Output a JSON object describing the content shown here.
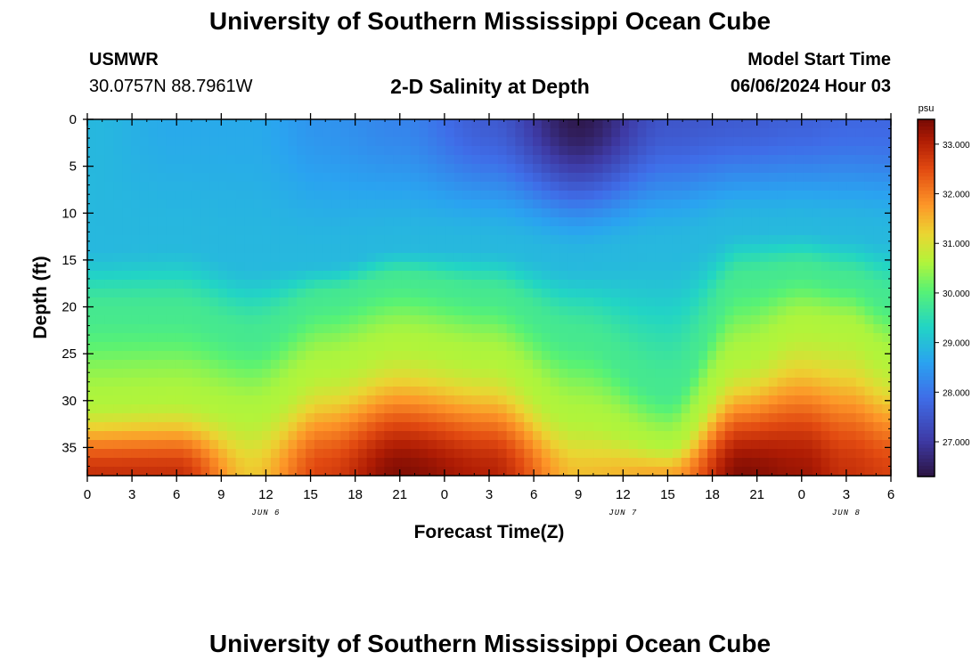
{
  "header": {
    "title": "University of Southern Mississippi Ocean Cube",
    "station": "USMWR",
    "coords": "30.0757N  88.7961W",
    "subtitle": "2-D Salinity at Depth",
    "model_label": "Model Start Time",
    "model_time": "06/06/2024 Hour 03"
  },
  "footer": {
    "title": "University of Southern Mississippi Ocean Cube"
  },
  "chart_data": {
    "type": "heatmap",
    "title": "2-D Salinity at Depth",
    "xlabel": "Forecast Time(Z)",
    "ylabel": "Depth (ft)",
    "x_tick_labels": [
      "0",
      "3",
      "6",
      "9",
      "12",
      "15",
      "18",
      "21",
      "0",
      "3",
      "6",
      "9",
      "12",
      "15",
      "18",
      "21",
      "0",
      "3",
      "6"
    ],
    "x_range_hours": [
      0,
      54
    ],
    "date_labels": [
      {
        "label": "JUN 6",
        "hour": 12
      },
      {
        "label": "JUN 7",
        "hour": 36
      },
      {
        "label": "JUN 8",
        "hour": 51
      }
    ],
    "y_ticks": [
      0,
      5,
      10,
      15,
      20,
      25,
      30,
      35
    ],
    "y_range": [
      0,
      38
    ],
    "y_inverted": true,
    "colorbar": {
      "unit": "psu",
      "ticks": [
        "27.000",
        "28.000",
        "29.000",
        "30.000",
        "31.000",
        "32.000",
        "33.000"
      ],
      "range": [
        26.3,
        33.5
      ],
      "colormap": "turbo"
    },
    "x_knots_hours": [
      0,
      6,
      11,
      16,
      21,
      27,
      33,
      39,
      44,
      48,
      51,
      54
    ],
    "interface_depth": {
      "y_val": [
        30.0,
        29.5,
        31.0,
        26.0,
        23.5,
        25.0,
        31.5,
        34.5,
        25.0,
        21.5,
        22.0,
        25.0
      ],
      "g_val": [
        20.5,
        20.5,
        23.0,
        19.0,
        17.0,
        18.5,
        23.0,
        29.0,
        17.0,
        16.0,
        17.0,
        19.0
      ],
      "c_val": [
        13.5,
        13.0,
        15.0,
        15.0,
        13.5,
        13.5,
        15.0,
        13.5,
        11.5,
        11.5,
        12.0,
        12.5
      ]
    },
    "surface_salinity": [
      28.9,
      28.7,
      28.7,
      28.4,
      28.2,
      27.6,
      26.4,
      27.5,
      27.6,
      27.7,
      27.8,
      27.8
    ],
    "bottom_salinity": [
      32.8,
      32.8,
      31.3,
      32.6,
      33.4,
      33.0,
      31.4,
      31.6,
      33.4,
      33.2,
      32.8,
      32.6
    ]
  }
}
